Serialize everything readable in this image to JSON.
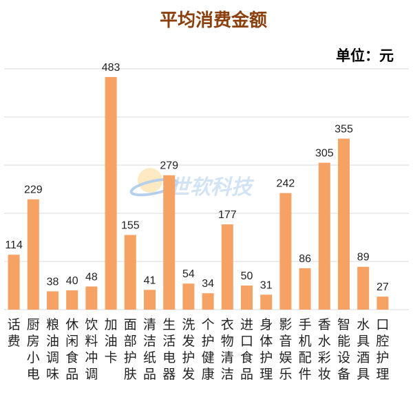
{
  "chart_data": {
    "type": "bar",
    "title": "平均消费金额",
    "unit_label": "单位：元",
    "ylim": [
      0,
      500
    ],
    "grid": true,
    "color": "#f5a264",
    "categories": [
      "话费",
      "厨房小电",
      "粮油调味",
      "休闲食品",
      "饮料冲调",
      "加油卡",
      "面部护肤",
      "清洁纸品",
      "生活电器",
      "洗发护发",
      "个护健康",
      "衣物清洁",
      "进口食品",
      "身体护理",
      "影音娱乐",
      "手机配件",
      "香水彩妆",
      "智能设备",
      "水具酒具",
      "口腔护理"
    ],
    "values": [
      114,
      229,
      38,
      40,
      48,
      483,
      155,
      41,
      279,
      54,
      34,
      177,
      50,
      31,
      242,
      86,
      305,
      355,
      89,
      27
    ]
  },
  "watermark": {
    "text": "世软科技",
    "icon": "globe-logo-icon"
  }
}
